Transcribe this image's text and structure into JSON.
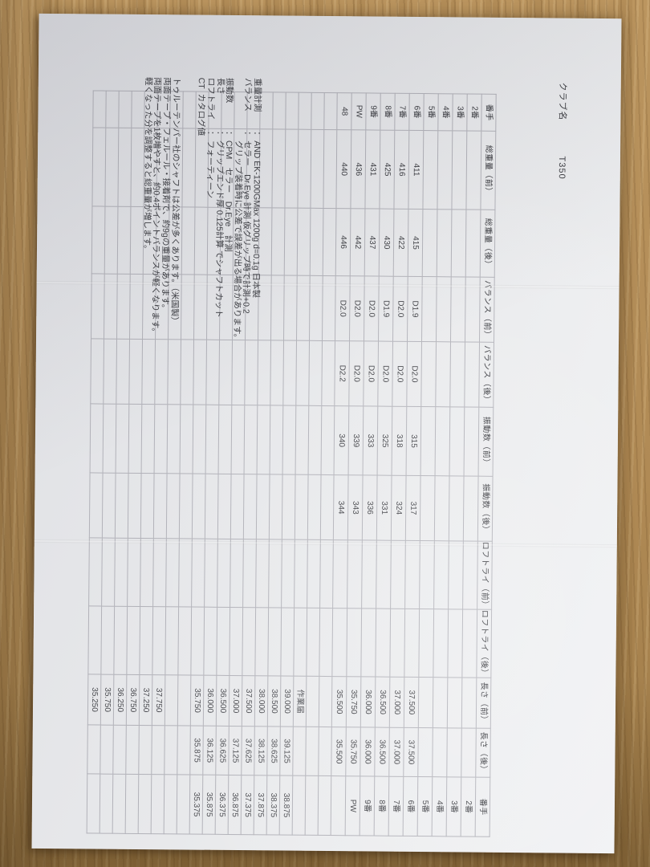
{
  "page": {
    "club_name_label": "クラブ名",
    "club_name_value": "T350"
  },
  "table": {
    "columns": [
      "番手",
      "総重量（前）",
      "総重量（後）",
      "バランス（前）",
      "バランス（後）",
      "振動数（前）",
      "振動数（後）",
      "ロフトライ（前）",
      "ロフトライ（後）",
      "長さ（前）",
      "長さ（後）",
      "番手"
    ],
    "rows": [
      [
        "2番",
        "",
        "",
        "",
        "",
        "",
        "",
        "",
        "",
        "",
        "",
        "2番"
      ],
      [
        "3番",
        "",
        "",
        "",
        "",
        "",
        "",
        "",
        "",
        "",
        "",
        "3番"
      ],
      [
        "4番",
        "",
        "",
        "",
        "",
        "",
        "",
        "",
        "",
        "",
        "",
        "4番"
      ],
      [
        "5番",
        "",
        "",
        "",
        "",
        "",
        "",
        "",
        "",
        "",
        "",
        "5番"
      ],
      [
        "6番",
        "411",
        "415",
        "D1.9",
        "D2.0",
        "315",
        "317",
        "",
        "",
        "37.500",
        "37.500",
        "6番"
      ],
      [
        "7番",
        "416",
        "422",
        "D2.0",
        "D2.0",
        "318",
        "324",
        "",
        "",
        "37.000",
        "37.000",
        "7番"
      ],
      [
        "8番",
        "425",
        "430",
        "D1.9",
        "D2.0",
        "325",
        "331",
        "",
        "",
        "36.500",
        "36.500",
        "8番"
      ],
      [
        "9番",
        "431",
        "437",
        "D2.0",
        "D2.0",
        "333",
        "336",
        "",
        "",
        "36.000",
        "36.000",
        "9番"
      ],
      [
        "PW",
        "436",
        "442",
        "D2.0",
        "D2.0",
        "339",
        "343",
        "",
        "",
        "35.750",
        "35.750",
        "PW"
      ],
      [
        "48",
        "440",
        "446",
        "D2.0",
        "D2.2",
        "340",
        "344",
        "",
        "",
        "35.500",
        "35.500",
        ""
      ]
    ],
    "filler_rows": [
      [
        "",
        "",
        "",
        "",
        "",
        "",
        "",
        "",
        "",
        "",
        "",
        ""
      ],
      [
        "",
        "",
        "",
        "",
        "",
        "",
        "",
        "",
        "",
        "",
        "",
        ""
      ],
      [
        "",
        "",
        "",
        "",
        "",
        "",
        "",
        "",
        "",
        "作業届",
        "",
        ""
      ],
      [
        "",
        "",
        "",
        "",
        "",
        "",
        "",
        "",
        "",
        "39.000",
        "39.125",
        "38.875"
      ],
      [
        "",
        "",
        "",
        "",
        "",
        "",
        "",
        "",
        "",
        "38.500",
        "38.625",
        "38.375"
      ],
      [
        "",
        "",
        "",
        "",
        "",
        "",
        "",
        "",
        "",
        "38.000",
        "38.125",
        "37.875"
      ],
      [
        "",
        "",
        "",
        "",
        "",
        "",
        "",
        "",
        "",
        "37.500",
        "37.625",
        "37.375"
      ],
      [
        "",
        "",
        "",
        "",
        "",
        "",
        "",
        "",
        "",
        "37.000",
        "37.125",
        "36.875"
      ],
      [
        "",
        "",
        "",
        "",
        "",
        "",
        "",
        "",
        "",
        "36.500",
        "36.625",
        "36.375"
      ],
      [
        "",
        "",
        "",
        "",
        "",
        "",
        "",
        "",
        "",
        "36.000",
        "36.125",
        "35.875"
      ],
      [
        "",
        "",
        "",
        "",
        "",
        "",
        "",
        "",
        "",
        "35.750",
        "35.875",
        "35.375"
      ],
      [
        "",
        "",
        "",
        "",
        "",
        "",
        "",
        "",
        "",
        "",
        "",
        ""
      ],
      [
        "",
        "",
        "",
        "",
        "",
        "",
        "",
        "",
        "",
        "",
        "",
        ""
      ],
      [
        "",
        "",
        "",
        "",
        "",
        "",
        "",
        "",
        "",
        "37.750",
        "",
        ""
      ],
      [
        "",
        "",
        "",
        "",
        "",
        "",
        "",
        "",
        "",
        "37.250",
        "",
        ""
      ],
      [
        "",
        "",
        "",
        "",
        "",
        "",
        "",
        "",
        "",
        "36.750",
        "",
        ""
      ],
      [
        "",
        "",
        "",
        "",
        "",
        "",
        "",
        "",
        "",
        "36.250",
        "",
        ""
      ],
      [
        "",
        "",
        "",
        "",
        "",
        "",
        "",
        "",
        "",
        "35.750",
        "",
        ""
      ],
      [
        "",
        "",
        "",
        "",
        "",
        "",
        "",
        "",
        "",
        "35.250",
        "",
        ""
      ]
    ]
  },
  "notes": {
    "spec_lines": [
      {
        "label": "重量計測",
        "colon": true,
        "short": false,
        "value": "AND EK-1200GMax 1200g d=0.1g 日本製"
      },
      {
        "label": "バランス",
        "colon": true,
        "short": false,
        "value": "セラー　Dr.Eye 計測 仮グリップ時で計測+0.2"
      },
      {
        "label": "",
        "colon": false,
        "short": false,
        "indent": true,
        "value": "グリップ装着時に公差で誤差が出る場合があります。"
      },
      {
        "label": "振動数",
        "colon": true,
        "short": false,
        "value": "CPM　セラー　Dr.Eye　計測"
      },
      {
        "label": "長さ",
        "colon": true,
        "short": false,
        "value": "グリップエンド厚 0.125計算 でシャフトカット"
      },
      {
        "label": "ロフトライ",
        "colon": true,
        "short": false,
        "value": "フォーティーン"
      },
      {
        "label": "CT",
        "colon": false,
        "short": true,
        "value": "カタログ値"
      }
    ],
    "remarks": [
      "トゥルーテンパー社のシャフトは公差が多くあります。（米国製）",
      "両面テープ・フェルール・接着剤で、約9gの重量があります。",
      "両面テープを1枚増やすと、約0.4ポイントバランスが軽くなります。",
      "軽くなった分を調整すると総重量が増します。"
    ]
  },
  "colors": {
    "wood": "#b08a55",
    "paper": "#e9eaec",
    "ink": "#3e3f44",
    "gridline": "#b2b2b9"
  }
}
